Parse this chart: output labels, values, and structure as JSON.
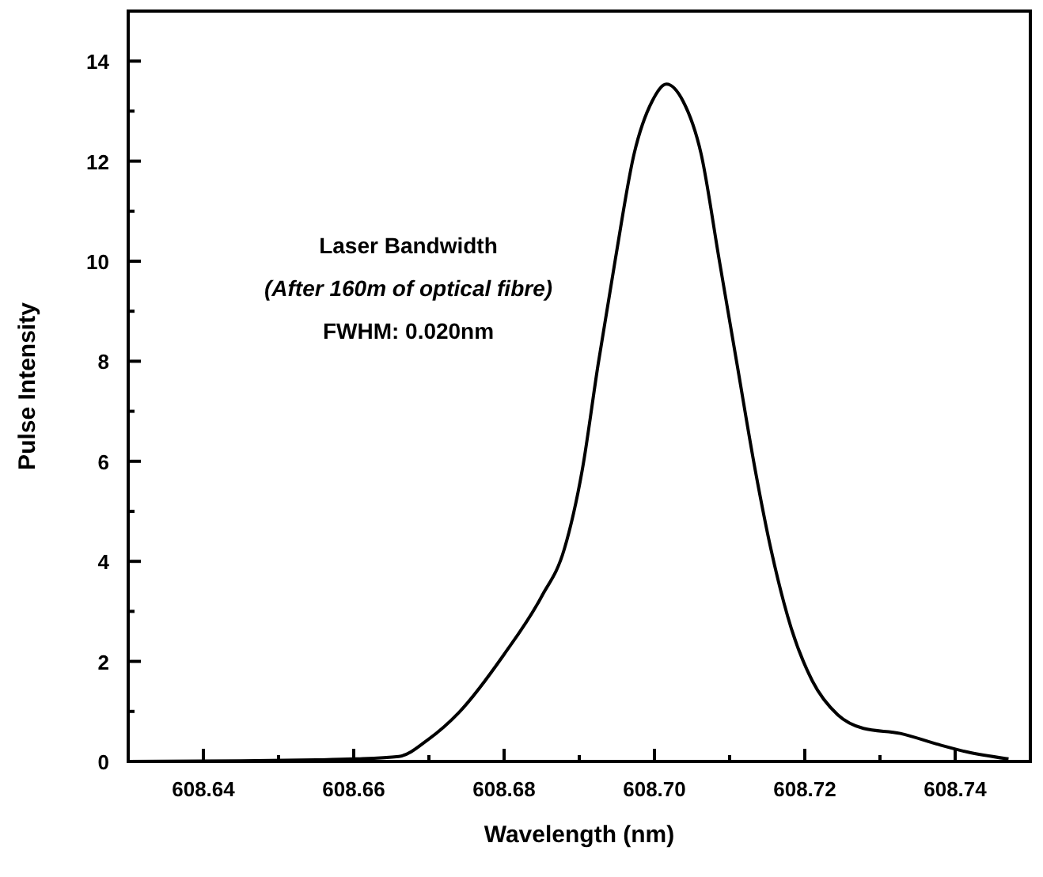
{
  "chart_data": {
    "type": "line",
    "xlabel": "Wavelength (nm)",
    "ylabel": "Pulse Intensity",
    "annotations": [
      "Laser Bandwidth",
      "(After 160m of optical fibre)",
      "FWHM: 0.020nm"
    ],
    "xlim": [
      608.63,
      608.75
    ],
    "ylim": [
      0,
      15
    ],
    "xticks": [
      {
        "value": 608.63,
        "label": null
      },
      608.64,
      {
        "value": 608.65,
        "label": null
      },
      608.66,
      {
        "value": 608.67,
        "label": null
      },
      608.68,
      {
        "value": 608.69,
        "label": null
      },
      {
        "value": 608.7,
        "label": "608.70"
      },
      {
        "value": 608.71,
        "label": null
      },
      608.72,
      {
        "value": 608.73,
        "label": null
      },
      608.74
    ],
    "yticks": [
      0,
      {
        "value": 1,
        "label": null
      },
      2,
      {
        "value": 3,
        "label": null
      },
      4,
      {
        "value": 5,
        "label": null
      },
      6,
      {
        "value": 7,
        "label": null
      },
      8,
      {
        "value": 9,
        "label": null
      },
      10,
      {
        "value": 11,
        "label": null
      },
      12,
      {
        "value": 13,
        "label": null
      },
      14
    ],
    "grid": false,
    "marker": "none",
    "line_style": "solid",
    "series": [
      {
        "color": "#000000",
        "x": [
          608.63,
          608.645,
          608.655,
          608.66,
          608.666,
          608.67,
          608.674,
          608.68,
          608.685,
          608.688,
          608.6904,
          608.6925,
          608.6948,
          608.6973,
          608.6997,
          608.7016,
          608.7038,
          608.7062,
          608.7086,
          608.711,
          608.7134,
          608.7155,
          608.7182,
          608.721,
          608.7244,
          608.7278,
          608.7327,
          608.7375,
          608.7416,
          608.7471
        ],
        "values": [
          0,
          0.01,
          0.03,
          0.05,
          0.1,
          0.45,
          0.98,
          2.14,
          3.3,
          4.24,
          5.83,
          7.93,
          10.04,
          12.15,
          13.2,
          13.54,
          13.2,
          12.15,
          10.04,
          7.93,
          5.83,
          4.24,
          2.66,
          1.61,
          0.93,
          0.66,
          0.56,
          0.35,
          0.19,
          0.05
        ]
      }
    ]
  }
}
